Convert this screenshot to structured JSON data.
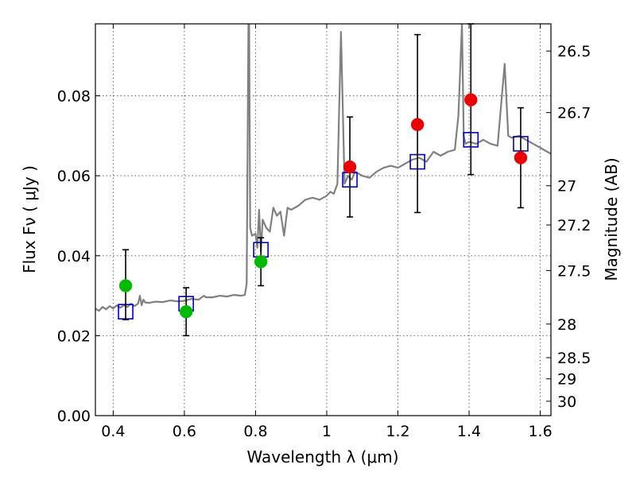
{
  "chart_data": {
    "type": "scatter",
    "title": "",
    "xlabel": "Wavelength  λ (μm)",
    "ylabel": "Flux  Fν  ( μJy )",
    "ylabel_right": "Magnitude (AB)",
    "xlim": [
      0.35,
      1.63
    ],
    "ylim": [
      0.0,
      0.098
    ],
    "grid": true,
    "xticks": [
      0.4,
      0.6,
      0.8,
      1.0,
      1.2,
      1.4,
      1.6
    ],
    "xtick_labels": [
      "0.4",
      "0.6",
      "0.8",
      "1",
      "1.2",
      "1.4",
      "1.6"
    ],
    "yticks": [
      0.0,
      0.02,
      0.04,
      0.06,
      0.08
    ],
    "ytick_labels": [
      "0.00",
      "0.02",
      "0.04",
      "0.06",
      "0.08"
    ],
    "right_ticks": [
      {
        "flux": 0.0912,
        "label": "26.5"
      },
      {
        "flux": 0.0758,
        "label": "26.7"
      },
      {
        "flux": 0.0575,
        "label": "27"
      },
      {
        "flux": 0.0477,
        "label": "27.2"
      },
      {
        "flux": 0.0363,
        "label": "27.5"
      },
      {
        "flux": 0.0229,
        "label": "28"
      },
      {
        "flux": 0.0145,
        "label": "28.5"
      },
      {
        "flux": 0.0092,
        "label": "29"
      },
      {
        "flux": 0.0036,
        "label": "30"
      }
    ],
    "colors": {
      "model": "#808080",
      "green": "#00bb00",
      "red": "#ee0000",
      "model_box": "#0000cc",
      "errorbar": "#000000",
      "grid": "#666666"
    },
    "series": [
      {
        "marker": "model-spectrum-line",
        "x": [
          0.35,
          0.36,
          0.37,
          0.38,
          0.39,
          0.4,
          0.41,
          0.42,
          0.43,
          0.44,
          0.45,
          0.46,
          0.47,
          0.475,
          0.48,
          0.485,
          0.49,
          0.5,
          0.52,
          0.54,
          0.56,
          0.58,
          0.6,
          0.62,
          0.64,
          0.655,
          0.66,
          0.68,
          0.7,
          0.72,
          0.74,
          0.76,
          0.77,
          0.775,
          0.78,
          0.782,
          0.785,
          0.79,
          0.8,
          0.805,
          0.81,
          0.815,
          0.82,
          0.83,
          0.84,
          0.85,
          0.86,
          0.87,
          0.88,
          0.89,
          0.9,
          0.92,
          0.94,
          0.96,
          0.98,
          1.0,
          1.01,
          1.02,
          1.03,
          1.04,
          1.05,
          1.06,
          1.07,
          1.08,
          1.1,
          1.12,
          1.14,
          1.16,
          1.18,
          1.2,
          1.22,
          1.24,
          1.26,
          1.28,
          1.3,
          1.32,
          1.34,
          1.36,
          1.37,
          1.38,
          1.385,
          1.39,
          1.4,
          1.42,
          1.44,
          1.46,
          1.48,
          1.5,
          1.51,
          1.52,
          1.54,
          1.56,
          1.58,
          1.6,
          1.62,
          1.63
        ],
        "y": [
          0.0268,
          0.0262,
          0.0272,
          0.0266,
          0.0274,
          0.0268,
          0.0276,
          0.027,
          0.0276,
          0.0272,
          0.028,
          0.0274,
          0.028,
          0.03,
          0.0276,
          0.029,
          0.0283,
          0.0282,
          0.0285,
          0.0284,
          0.0288,
          0.0286,
          0.0287,
          0.0292,
          0.029,
          0.03,
          0.0296,
          0.0296,
          0.03,
          0.0298,
          0.0302,
          0.03,
          0.0302,
          0.033,
          0.098,
          0.098,
          0.047,
          0.045,
          0.0455,
          0.042,
          0.0515,
          0.041,
          0.049,
          0.047,
          0.046,
          0.052,
          0.05,
          0.051,
          0.045,
          0.052,
          0.0515,
          0.0525,
          0.054,
          0.0545,
          0.054,
          0.055,
          0.056,
          0.0555,
          0.058,
          0.096,
          0.058,
          0.06,
          0.059,
          0.061,
          0.06,
          0.0595,
          0.061,
          0.062,
          0.0625,
          0.062,
          0.063,
          0.064,
          0.0645,
          0.0635,
          0.066,
          0.065,
          0.066,
          0.0665,
          0.075,
          0.098,
          0.07,
          0.068,
          0.0685,
          0.068,
          0.069,
          0.068,
          0.0675,
          0.088,
          0.07,
          0.0695,
          0.07,
          0.069,
          0.068,
          0.067,
          0.066,
          0.0655
        ]
      },
      {
        "marker": "blue-open-square",
        "x": [
          0.435,
          0.605,
          0.815,
          1.065,
          1.255,
          1.405,
          1.545
        ],
        "y": [
          0.026,
          0.028,
          0.0415,
          0.059,
          0.0635,
          0.069,
          0.068
        ]
      },
      {
        "marker": "green-filled-circle",
        "x": [
          0.435,
          0.605,
          0.815
        ],
        "y": [
          0.0325,
          0.026,
          0.0385
        ],
        "err_low": [
          0.0085,
          0.006,
          0.006
        ],
        "err_high": [
          0.009,
          0.006,
          0.006
        ]
      },
      {
        "marker": "red-filled-circle",
        "x": [
          1.065,
          1.255,
          1.405,
          1.545
        ],
        "y": [
          0.0622,
          0.0728,
          0.079,
          0.0645
        ],
        "err_low": [
          0.0125,
          0.022,
          0.0187,
          0.0125
        ],
        "err_high": [
          0.0125,
          0.0225,
          0.019,
          0.0125
        ]
      }
    ]
  }
}
